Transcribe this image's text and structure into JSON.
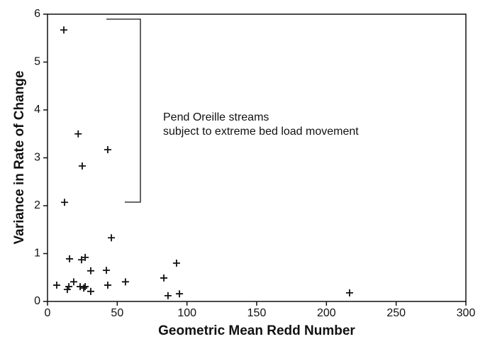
{
  "chart_data": {
    "type": "scatter",
    "xlabel": "Geometric Mean Redd Number",
    "ylabel": "Variance in Rate of Change",
    "annotation": [
      "Pend Oreille streams",
      "subject to extreme bed load movement"
    ],
    "x": [
      11.7,
      22,
      43.2,
      24.9,
      12.2,
      45.8,
      92.5,
      15.8,
      24.4,
      27,
      31,
      42.2,
      83.4,
      55.9,
      6.6,
      18.8,
      15.3,
      14.2,
      23.4,
      26,
      27,
      31,
      43.2,
      86.4,
      94.6,
      216.6
    ],
    "values": [
      5.67,
      3.5,
      3.17,
      2.83,
      2.07,
      1.33,
      0.8,
      0.89,
      0.87,
      0.92,
      0.64,
      0.65,
      0.49,
      0.41,
      0.34,
      0.41,
      0.31,
      0.25,
      0.31,
      0.28,
      0.31,
      0.21,
      0.34,
      0.12,
      0.16,
      0.18
    ],
    "color": "#111111",
    "xlim": [
      0,
      300
    ],
    "xticks": [
      0,
      50,
      100,
      150,
      200,
      250,
      300
    ],
    "ylim": [
      0,
      6
    ],
    "yticks": [
      0,
      1,
      2,
      3,
      4,
      5,
      6
    ]
  }
}
